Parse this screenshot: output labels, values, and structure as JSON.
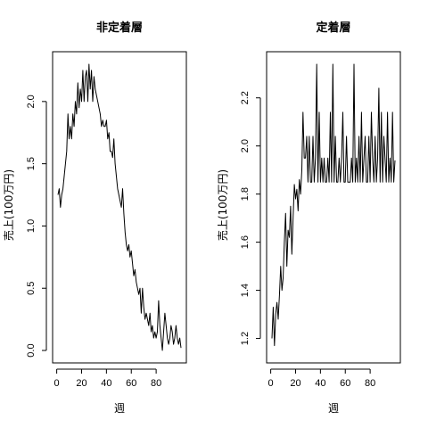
{
  "chart_data": [
    {
      "type": "line",
      "title": "非定着層",
      "xlabel": "週",
      "ylabel": "売上(100万円)",
      "xlim": [
        1,
        100
      ],
      "ylim": [
        0.0,
        2.3
      ],
      "xticks": [
        0,
        20,
        40,
        60,
        80
      ],
      "yticks": [
        0.0,
        0.5,
        1.0,
        1.5,
        2.0
      ],
      "xtick_labels": [
        "0",
        "20",
        "40",
        "60",
        "80"
      ],
      "ytick_labels": [
        "0.0",
        "0.5",
        "1.0",
        "1.5",
        "2.0"
      ],
      "grid": false,
      "series": [
        {
          "x": [
            1,
            2,
            3,
            4,
            5,
            6,
            7,
            8,
            9,
            10,
            11,
            12,
            13,
            14,
            15,
            16,
            17,
            18,
            19,
            20,
            21,
            22,
            23,
            24,
            25,
            26,
            27,
            28,
            29,
            30,
            31,
            32,
            33,
            34,
            35,
            36,
            37,
            38,
            39,
            40,
            41,
            42,
            43,
            44,
            45,
            46,
            47,
            48,
            49,
            50,
            51,
            52,
            53,
            54,
            55,
            56,
            57,
            58,
            59,
            60,
            61,
            62,
            63,
            64,
            65,
            66,
            67,
            68,
            69,
            70,
            71,
            72,
            73,
            74,
            75,
            76,
            77,
            78,
            79,
            80,
            81,
            82,
            83,
            84,
            85,
            86,
            87,
            88,
            89,
            90,
            91,
            92,
            93,
            94,
            95,
            96,
            97,
            98,
            99,
            100
          ],
          "y": [
            1.25,
            1.3,
            1.15,
            1.25,
            1.3,
            1.4,
            1.5,
            1.6,
            1.9,
            1.7,
            1.8,
            1.7,
            1.9,
            1.8,
            2.0,
            1.9,
            2.15,
            1.95,
            2.1,
            2.0,
            2.25,
            2.0,
            2.2,
            2.25,
            2.0,
            2.3,
            2.1,
            2.25,
            2.0,
            2.2,
            2.1,
            2.05,
            2.0,
            1.95,
            1.9,
            1.8,
            1.85,
            1.8,
            1.8,
            1.85,
            1.7,
            1.75,
            1.6,
            1.6,
            1.55,
            1.7,
            1.5,
            1.4,
            1.3,
            1.25,
            1.2,
            1.15,
            1.3,
            1.1,
            0.95,
            0.85,
            0.8,
            0.85,
            0.75,
            0.8,
            0.7,
            0.6,
            0.65,
            0.55,
            0.5,
            0.45,
            0.5,
            0.3,
            0.5,
            0.35,
            0.25,
            0.3,
            0.25,
            0.2,
            0.3,
            0.15,
            0.2,
            0.1,
            0.15,
            0.1,
            0.15,
            0.4,
            0.2,
            0.1,
            0.0,
            0.15,
            0.3,
            0.2,
            0.1,
            0.05,
            0.1,
            0.2,
            0.15,
            0.05,
            0.1,
            0.2,
            0.1,
            0.05,
            0.1,
            0.02
          ]
        }
      ]
    },
    {
      "type": "line",
      "title": "定着層",
      "xlabel": "週",
      "ylabel": "売上(100万円)",
      "xlim": [
        1,
        100
      ],
      "ylim": [
        1.15,
        2.34
      ],
      "xticks": [
        0,
        20,
        40,
        60,
        80
      ],
      "yticks": [
        1.2,
        1.4,
        1.6,
        1.8,
        2.0,
        2.2
      ],
      "xtick_labels": [
        "0",
        "20",
        "40",
        "60",
        "80"
      ],
      "ytick_labels": [
        "1.2",
        "1.4",
        "1.6",
        "1.8",
        "2.0",
        "2.2"
      ],
      "grid": false,
      "series": [
        {
          "x": [
            1,
            2,
            3,
            4,
            5,
            6,
            7,
            8,
            9,
            10,
            11,
            12,
            13,
            14,
            15,
            16,
            17,
            18,
            19,
            20,
            21,
            22,
            23,
            24,
            25,
            26,
            27,
            28,
            29,
            30,
            31,
            32,
            33,
            34,
            35,
            36,
            37,
            38,
            39,
            40,
            41,
            42,
            43,
            44,
            45,
            46,
            47,
            48,
            49,
            50,
            51,
            52,
            53,
            54,
            55,
            56,
            57,
            58,
            59,
            60,
            61,
            62,
            63,
            64,
            65,
            66,
            67,
            68,
            69,
            70,
            71,
            72,
            73,
            74,
            75,
            76,
            77,
            78,
            79,
            80,
            81,
            82,
            83,
            84,
            85,
            86,
            87,
            88,
            89,
            90,
            91,
            92,
            93,
            94,
            95,
            96,
            97,
            98,
            99,
            100
          ],
          "y": [
            1.2,
            1.33,
            1.17,
            1.3,
            1.35,
            1.28,
            1.38,
            1.5,
            1.4,
            1.45,
            1.6,
            1.72,
            1.5,
            1.65,
            1.62,
            1.75,
            1.55,
            1.7,
            1.84,
            1.78,
            1.82,
            1.73,
            1.86,
            1.8,
            1.9,
            2.14,
            1.95,
            1.95,
            2.04,
            1.85,
            2.04,
            1.85,
            1.85,
            2.04,
            1.85,
            1.95,
            2.34,
            1.85,
            2.14,
            1.85,
            1.95,
            1.85,
            1.95,
            1.85,
            1.85,
            1.95,
            1.85,
            2.14,
            1.85,
            2.34,
            1.85,
            2.04,
            1.85,
            1.85,
            1.95,
            1.85,
            1.95,
            2.14,
            1.85,
            1.85,
            2.04,
            1.85,
            1.85,
            1.85,
            1.95,
            1.85,
            2.34,
            1.85,
            1.95,
            1.85,
            2.04,
            1.85,
            2.14,
            1.85,
            1.95,
            2.04,
            1.85,
            1.85,
            2.04,
            1.85,
            2.14,
            1.95,
            1.85,
            2.04,
            1.85,
            1.95,
            2.24,
            1.85,
            2.14,
            1.85,
            2.04,
            1.95,
            1.85,
            2.14,
            1.85,
            1.95,
            1.85,
            2.14,
            1.85,
            1.94
          ]
        }
      ]
    }
  ]
}
